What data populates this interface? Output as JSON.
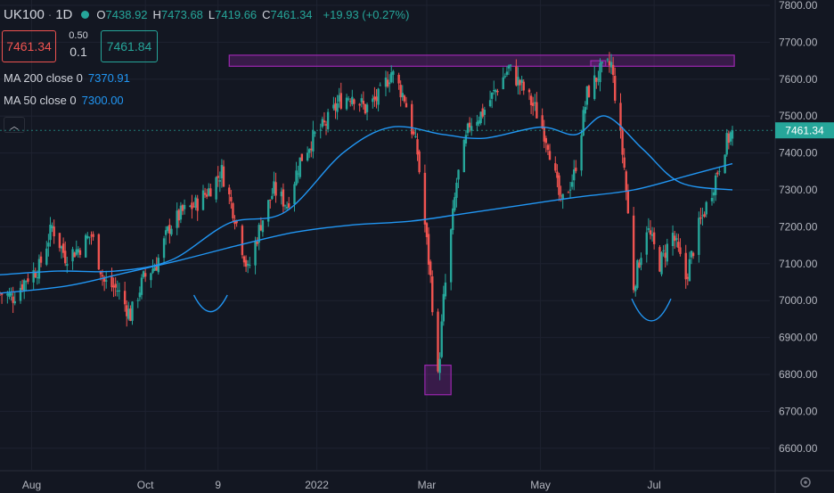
{
  "header": {
    "symbol": "UK100",
    "interval": "1D",
    "o_label": "O",
    "o_value": "7438.92",
    "h_label": "H",
    "h_value": "7473.68",
    "l_label": "L",
    "l_value": "7419.66",
    "c_label": "C",
    "c_value": "7461.34",
    "change": "+19.93 (+0.27%)"
  },
  "trade": {
    "sell_price": "7461.34",
    "buy_price": "7461.84",
    "spread_top": "0.50",
    "spread_bottom": "0.1"
  },
  "indicators": [
    {
      "label": "MA 200 close 0",
      "value": "7370.91"
    },
    {
      "label": "MA 50 close 0",
      "value": "7300.00"
    }
  ],
  "collapse_icon": "chevron-up-icon",
  "colors": {
    "background": "#131722",
    "up": "#26a69a",
    "down": "#ef5350",
    "ma": "#2196f3",
    "zone": "#9c27b0",
    "grid": "#1e2230",
    "text": "#d1d4dc"
  },
  "chart_data": {
    "type": "candlestick",
    "title": "",
    "xlabel": "",
    "ylabel": "",
    "ylim": [
      6550,
      7800
    ],
    "grid": true,
    "y_ticks": [
      "6600.00",
      "6700.00",
      "6800.00",
      "6900.00",
      "7000.00",
      "7100.00",
      "7200.00",
      "7300.00",
      "7400.00",
      "7500.00",
      "7600.00",
      "7700.00",
      "7800.00"
    ],
    "x_ticks": [
      "Aug",
      "Oct",
      "9",
      "2022",
      "Mar",
      "May",
      "Jul"
    ],
    "last_price": "7461.34",
    "close_path": [
      [
        "2021-07-15",
        7020
      ],
      [
        "2021-07-22",
        7010
      ],
      [
        "2021-07-29",
        7060
      ],
      [
        "2021-08-05",
        7090
      ],
      [
        "2021-08-12",
        7200
      ],
      [
        "2021-08-19",
        7120
      ],
      [
        "2021-08-26",
        7140
      ],
      [
        "2021-09-02",
        7180
      ],
      [
        "2021-09-09",
        7050
      ],
      [
        "2021-09-16",
        7030
      ],
      [
        "2021-09-23",
        6960
      ],
      [
        "2021-09-30",
        7060
      ],
      [
        "2021-10-07",
        7100
      ],
      [
        "2021-10-14",
        7200
      ],
      [
        "2021-10-21",
        7240
      ],
      [
        "2021-10-28",
        7260
      ],
      [
        "2021-11-04",
        7300
      ],
      [
        "2021-11-11",
        7350
      ],
      [
        "2021-11-18",
        7230
      ],
      [
        "2021-11-25",
        7080
      ],
      [
        "2021-12-02",
        7210
      ],
      [
        "2021-12-09",
        7300
      ],
      [
        "2021-12-16",
        7260
      ],
      [
        "2021-12-23",
        7380
      ],
      [
        "2021-12-30",
        7440
      ],
      [
        "2022-01-06",
        7480
      ],
      [
        "2022-01-13",
        7540
      ],
      [
        "2022-01-20",
        7560
      ],
      [
        "2022-01-27",
        7520
      ],
      [
        "2022-02-03",
        7550
      ],
      [
        "2022-02-10",
        7620
      ],
      [
        "2022-02-17",
        7550
      ],
      [
        "2022-02-24",
        7400
      ],
      [
        "2022-03-03",
        7060
      ],
      [
        "2022-03-07",
        6790
      ],
      [
        "2022-03-10",
        7000
      ],
      [
        "2022-03-17",
        7320
      ],
      [
        "2022-03-24",
        7480
      ],
      [
        "2022-03-31",
        7510
      ],
      [
        "2022-04-07",
        7570
      ],
      [
        "2022-04-14",
        7630
      ],
      [
        "2022-04-21",
        7580
      ],
      [
        "2022-04-28",
        7520
      ],
      [
        "2022-05-05",
        7430
      ],
      [
        "2022-05-12",
        7260
      ],
      [
        "2022-05-19",
        7340
      ],
      [
        "2022-05-26",
        7560
      ],
      [
        "2022-06-02",
        7620
      ],
      [
        "2022-06-08",
        7640
      ],
      [
        "2022-06-15",
        7360
      ],
      [
        "2022-06-20",
        7040
      ],
      [
        "2022-06-27",
        7200
      ],
      [
        "2022-07-04",
        7100
      ],
      [
        "2022-07-11",
        7180
      ],
      [
        "2022-07-18",
        7060
      ],
      [
        "2022-07-25",
        7200
      ],
      [
        "2022-08-01",
        7300
      ],
      [
        "2022-08-08",
        7420
      ],
      [
        "2022-08-12",
        7461
      ]
    ],
    "ma200": [
      [
        "2021-07-15",
        7020
      ],
      [
        "2021-08-20",
        7040
      ],
      [
        "2021-09-20",
        7075
      ],
      [
        "2021-10-20",
        7110
      ],
      [
        "2021-11-20",
        7150
      ],
      [
        "2021-12-20",
        7185
      ],
      [
        "2022-01-20",
        7205
      ],
      [
        "2022-02-20",
        7215
      ],
      [
        "2022-03-20",
        7235
      ],
      [
        "2022-04-20",
        7258
      ],
      [
        "2022-05-20",
        7280
      ],
      [
        "2022-06-20",
        7300
      ],
      [
        "2022-07-20",
        7340
      ],
      [
        "2022-08-12",
        7371
      ]
    ],
    "ma50": [
      [
        "2021-07-15",
        7070
      ],
      [
        "2021-08-15",
        7080
      ],
      [
        "2021-09-15",
        7080
      ],
      [
        "2021-10-15",
        7110
      ],
      [
        "2021-11-15",
        7210
      ],
      [
        "2021-12-15",
        7240
      ],
      [
        "2022-01-15",
        7400
      ],
      [
        "2022-02-10",
        7470
      ],
      [
        "2022-03-10",
        7450
      ],
      [
        "2022-04-01",
        7440
      ],
      [
        "2022-05-01",
        7470
      ],
      [
        "2022-05-20",
        7450
      ],
      [
        "2022-06-05",
        7500
      ],
      [
        "2022-06-25",
        7410
      ],
      [
        "2022-07-15",
        7320
      ],
      [
        "2022-08-12",
        7300
      ]
    ],
    "zones": [
      {
        "x0": "2021-11-15",
        "x1": "2022-08-13",
        "y0": 7635,
        "y1": 7665
      },
      {
        "x0": "2022-05-28",
        "x1": "2022-06-05",
        "y0": 7635,
        "y1": 7650
      },
      {
        "x0": "2022-02-28",
        "x1": "2022-03-14",
        "y0": 6745,
        "y1": 6825
      }
    ],
    "arcs": [
      {
        "x0": "2021-10-27",
        "x1": "2021-11-14",
        "y_top": 7015,
        "y_bottom": 6970
      },
      {
        "x0": "2022-06-19",
        "x1": "2022-07-10",
        "y_top": 7005,
        "y_bottom": 6945
      }
    ]
  }
}
